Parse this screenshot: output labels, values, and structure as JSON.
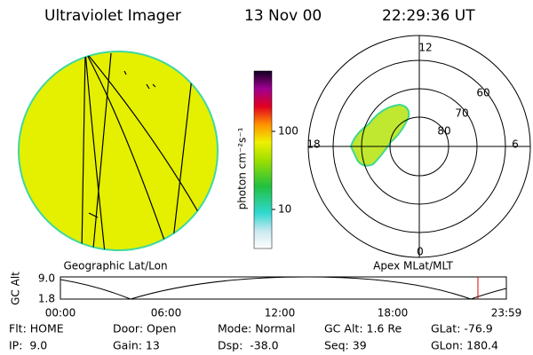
{
  "header": {
    "instrument": "Ultraviolet Imager",
    "date": "13 Nov 00",
    "time": "22:29:36 UT"
  },
  "colorbar": {
    "unit": "photon cm⁻²s⁻¹",
    "ticks": [
      "100",
      "10"
    ]
  },
  "left_panel": {
    "label": "Geographic Lat/Lon"
  },
  "right_panel": {
    "label": "Apex MLat/MLT",
    "lat_labels": [
      "60",
      "70",
      "80"
    ],
    "mlt_labels": [
      "12",
      "18",
      "6",
      "0"
    ]
  },
  "orbit_plot": {
    "ylabel": "GC Alt",
    "yticks": [
      "9.0",
      "1.8"
    ],
    "xticks": [
      "00:00",
      "06:00",
      "12:00",
      "18:00",
      "23:59"
    ]
  },
  "info": {
    "rows": [
      [
        "Flt: HOME",
        "Door: Open",
        "Mode: Normal",
        "GC Alt: 1.6 Re",
        "GLat: -76.9"
      ],
      [
        "IP:  9.0",
        "Gain: 13",
        "Dsp:  -38.0",
        "Seq: 39",
        "GLon: 180.4"
      ]
    ]
  }
}
